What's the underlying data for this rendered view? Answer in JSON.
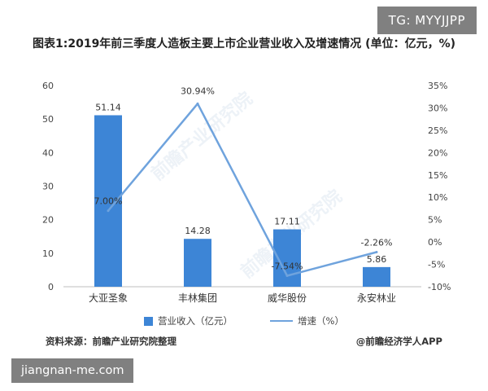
{
  "badges": {
    "top_right": "TG: MYYJJPP",
    "bottom_left": "jiangnan-me.com"
  },
  "chart_data": {
    "type": "bar",
    "title": "图表1:2019年前三季度人造板主要上市企业营业收入及增速情况 (单位：亿元，%)",
    "categories": [
      "大亚圣象",
      "丰林集团",
      "威华股份",
      "永安林业"
    ],
    "series": [
      {
        "name": "营业收入（亿元）",
        "type": "bar",
        "axis": "left",
        "color": "#3d85d6",
        "values": [
          51.14,
          14.28,
          17.11,
          5.86
        ],
        "labels": [
          "51.14",
          "14.28",
          "17.11",
          "5.86"
        ]
      },
      {
        "name": "增速（%）",
        "type": "line",
        "axis": "right",
        "color": "#6fa3dd",
        "values": [
          7.0,
          30.94,
          -7.54,
          -2.26
        ],
        "labels": [
          "7.00%",
          "30.94%",
          "-7.54%",
          "-2.26%"
        ]
      }
    ],
    "left_axis": {
      "ylim": [
        0,
        60
      ],
      "ticks": [
        "0",
        "10",
        "20",
        "30",
        "40",
        "50",
        "60"
      ]
    },
    "right_axis": {
      "ylim": [
        -10,
        35
      ],
      "ticks": [
        "-10%",
        "-5%",
        "0%",
        "5%",
        "10%",
        "15%",
        "20%",
        "25%",
        "30%",
        "35%"
      ]
    },
    "grid": false,
    "legend_position": "bottom"
  },
  "footer": {
    "source": "资料来源：前瞻产业研究院整理",
    "credit": "@前瞻经济学人APP"
  }
}
